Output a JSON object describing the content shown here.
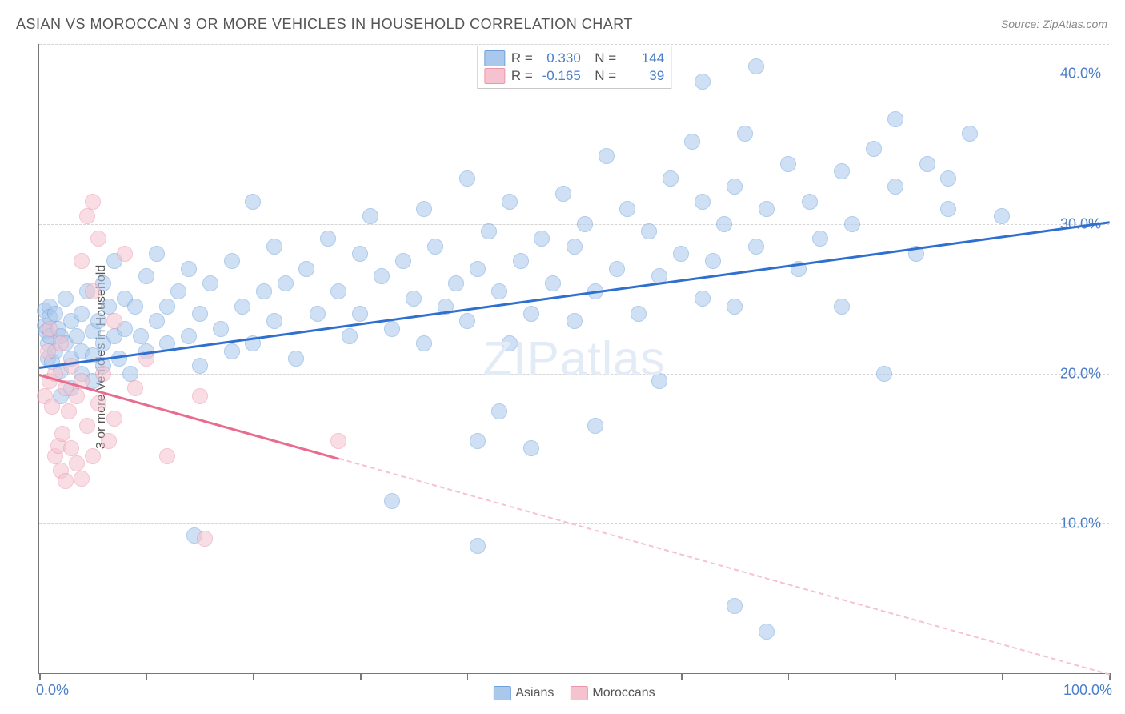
{
  "title": "ASIAN VS MOROCCAN 3 OR MORE VEHICLES IN HOUSEHOLD CORRELATION CHART",
  "source": "Source: ZipAtlas.com",
  "watermark": {
    "prefix": "ZIP",
    "suffix": "atlas"
  },
  "chart": {
    "type": "scatter",
    "y_axis_label": "3 or more Vehicles in Household",
    "background_color": "#ffffff",
    "grid_color": "#d5d5d5",
    "axis_color": "#777777",
    "text_color": "#555555",
    "value_color": "#4a7ec8",
    "xlim": [
      0,
      100
    ],
    "ylim": [
      0,
      42
    ],
    "x_tick_positions": [
      0,
      10,
      20,
      30,
      40,
      50,
      60,
      70,
      80,
      90,
      100
    ],
    "x_min_label": "0.0%",
    "x_max_label": "100.0%",
    "y_ticks": [
      {
        "value": 10,
        "label": "10.0%"
      },
      {
        "value": 20,
        "label": "20.0%"
      },
      {
        "value": 30,
        "label": "30.0%"
      },
      {
        "value": 40,
        "label": "40.0%"
      }
    ],
    "y_grid_top": 42,
    "marker_radius": 10,
    "series": [
      {
        "name": "Asians",
        "fill_color": "#a9c8ec",
        "stroke_color": "#6ea1db",
        "line_color": "#2f6fd0",
        "R": "0.330",
        "N": "144",
        "regression": {
          "x1": 0,
          "y1": 20.5,
          "x2": 100,
          "y2": 30.2,
          "solid_until_x": 100
        },
        "points": [
          [
            0.5,
            24.2
          ],
          [
            0.5,
            23.2
          ],
          [
            0.7,
            22.8
          ],
          [
            0.8,
            22.0
          ],
          [
            0.8,
            21.0
          ],
          [
            1,
            24.5
          ],
          [
            1,
            23.8
          ],
          [
            1,
            22.5
          ],
          [
            1.2,
            20.8
          ],
          [
            1.5,
            24.0
          ],
          [
            1.5,
            21.5
          ],
          [
            1.8,
            23.0
          ],
          [
            2,
            22.5
          ],
          [
            2,
            20.2
          ],
          [
            2,
            18.5
          ],
          [
            2.5,
            25.0
          ],
          [
            2.5,
            22.0
          ],
          [
            3,
            23.5
          ],
          [
            3,
            21.0
          ],
          [
            3,
            19.0
          ],
          [
            3.5,
            22.5
          ],
          [
            4,
            24.0
          ],
          [
            4,
            21.5
          ],
          [
            4,
            20.0
          ],
          [
            4.5,
            25.5
          ],
          [
            5,
            22.8
          ],
          [
            5,
            21.2
          ],
          [
            5,
            19.5
          ],
          [
            5.5,
            23.5
          ],
          [
            6,
            26.0
          ],
          [
            6,
            22.0
          ],
          [
            6,
            20.5
          ],
          [
            6.5,
            24.5
          ],
          [
            7,
            27.5
          ],
          [
            7,
            22.5
          ],
          [
            7.5,
            21.0
          ],
          [
            8,
            25.0
          ],
          [
            8,
            23.0
          ],
          [
            8.5,
            20.0
          ],
          [
            9,
            24.5
          ],
          [
            9.5,
            22.5
          ],
          [
            10,
            26.5
          ],
          [
            10,
            21.5
          ],
          [
            11,
            23.5
          ],
          [
            11,
            28.0
          ],
          [
            12,
            22.0
          ],
          [
            12,
            24.5
          ],
          [
            13,
            25.5
          ],
          [
            14,
            27.0
          ],
          [
            14,
            22.5
          ],
          [
            14.5,
            9.2
          ],
          [
            15,
            24.0
          ],
          [
            15,
            20.5
          ],
          [
            16,
            26.0
          ],
          [
            17,
            23.0
          ],
          [
            18,
            27.5
          ],
          [
            18,
            21.5
          ],
          [
            19,
            24.5
          ],
          [
            20,
            31.5
          ],
          [
            20,
            22.0
          ],
          [
            21,
            25.5
          ],
          [
            22,
            28.5
          ],
          [
            22,
            23.5
          ],
          [
            23,
            26.0
          ],
          [
            24,
            21.0
          ],
          [
            25,
            27.0
          ],
          [
            26,
            24.0
          ],
          [
            27,
            29.0
          ],
          [
            28,
            25.5
          ],
          [
            29,
            22.5
          ],
          [
            30,
            28.0
          ],
          [
            30,
            24.0
          ],
          [
            31,
            30.5
          ],
          [
            32,
            26.5
          ],
          [
            33,
            23.0
          ],
          [
            33,
            11.5
          ],
          [
            34,
            27.5
          ],
          [
            35,
            25.0
          ],
          [
            36,
            31.0
          ],
          [
            36,
            22.0
          ],
          [
            37,
            28.5
          ],
          [
            38,
            24.5
          ],
          [
            39,
            26.0
          ],
          [
            40,
            33.0
          ],
          [
            40,
            23.5
          ],
          [
            41,
            27.0
          ],
          [
            41,
            15.5
          ],
          [
            41,
            8.5
          ],
          [
            42,
            29.5
          ],
          [
            43,
            25.5
          ],
          [
            43,
            17.5
          ],
          [
            44,
            31.5
          ],
          [
            44,
            22.0
          ],
          [
            45,
            27.5
          ],
          [
            46,
            24.0
          ],
          [
            46,
            15.0
          ],
          [
            47,
            29.0
          ],
          [
            48,
            26.0
          ],
          [
            49,
            32.0
          ],
          [
            50,
            28.5
          ],
          [
            50,
            23.5
          ],
          [
            51,
            30.0
          ],
          [
            52,
            25.5
          ],
          [
            52,
            16.5
          ],
          [
            53,
            34.5
          ],
          [
            54,
            27.0
          ],
          [
            55,
            31.0
          ],
          [
            56,
            24.0
          ],
          [
            57,
            29.5
          ],
          [
            58,
            26.5
          ],
          [
            58,
            19.5
          ],
          [
            59,
            33.0
          ],
          [
            60,
            28.0
          ],
          [
            61,
            35.5
          ],
          [
            62,
            25.0
          ],
          [
            62,
            31.5
          ],
          [
            62,
            39.5
          ],
          [
            63,
            27.5
          ],
          [
            64,
            30.0
          ],
          [
            65,
            24.5
          ],
          [
            65,
            32.5
          ],
          [
            65,
            4.5
          ],
          [
            66,
            36.0
          ],
          [
            67,
            28.5
          ],
          [
            67,
            40.5
          ],
          [
            68,
            31.0
          ],
          [
            68,
            2.8
          ],
          [
            70,
            34.0
          ],
          [
            71,
            27.0
          ],
          [
            72,
            31.5
          ],
          [
            73,
            29.0
          ],
          [
            75,
            33.5
          ],
          [
            75,
            24.5
          ],
          [
            76,
            30.0
          ],
          [
            78,
            35.0
          ],
          [
            79,
            20.0
          ],
          [
            80,
            32.5
          ],
          [
            80,
            37.0
          ],
          [
            82,
            28.0
          ],
          [
            83,
            34.0
          ],
          [
            85,
            31.0
          ],
          [
            85,
            33.0
          ],
          [
            87,
            36.0
          ],
          [
            90,
            30.5
          ]
        ]
      },
      {
        "name": "Moroccans",
        "fill_color": "#f5c3cf",
        "stroke_color": "#ed95ab",
        "line_color": "#e96b8e",
        "R": "-0.165",
        "N": "39",
        "regression": {
          "x1": 0,
          "y1": 20.0,
          "x2": 100,
          "y2": 0.0,
          "solid_until_x": 28
        },
        "points": [
          [
            0.5,
            18.5
          ],
          [
            0.8,
            21.5
          ],
          [
            1,
            23.0
          ],
          [
            1,
            19.5
          ],
          [
            1.2,
            17.8
          ],
          [
            1.5,
            14.5
          ],
          [
            1.5,
            20.0
          ],
          [
            1.8,
            15.2
          ],
          [
            2,
            22.0
          ],
          [
            2,
            13.5
          ],
          [
            2.2,
            16.0
          ],
          [
            2.5,
            19.0
          ],
          [
            2.5,
            12.8
          ],
          [
            2.8,
            17.5
          ],
          [
            3,
            15.0
          ],
          [
            3,
            20.5
          ],
          [
            3.5,
            14.0
          ],
          [
            3.5,
            18.5
          ],
          [
            4,
            27.5
          ],
          [
            4,
            19.5
          ],
          [
            4,
            13.0
          ],
          [
            4.5,
            30.5
          ],
          [
            4.5,
            16.5
          ],
          [
            5,
            31.5
          ],
          [
            5,
            25.5
          ],
          [
            5,
            14.5
          ],
          [
            5.5,
            18.0
          ],
          [
            5.5,
            29.0
          ],
          [
            6,
            20.0
          ],
          [
            6.5,
            15.5
          ],
          [
            7,
            23.5
          ],
          [
            7,
            17.0
          ],
          [
            8,
            28.0
          ],
          [
            9,
            19.0
          ],
          [
            10,
            21.0
          ],
          [
            12,
            14.5
          ],
          [
            15,
            18.5
          ],
          [
            15.5,
            9.0
          ],
          [
            28,
            15.5
          ]
        ]
      }
    ]
  },
  "legend_bottom": [
    {
      "label": "Asians",
      "fill": "#a9c8ec",
      "stroke": "#6ea1db"
    },
    {
      "label": "Moroccans",
      "fill": "#f5c3cf",
      "stroke": "#ed95ab"
    }
  ]
}
